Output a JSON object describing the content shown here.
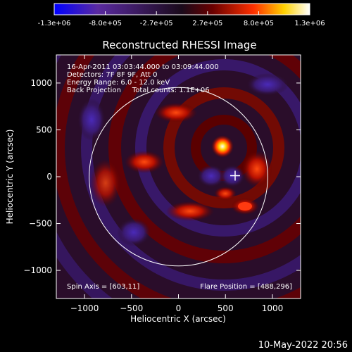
{
  "title": "Reconstructed RHESSI Image",
  "colorbar": {
    "tick_labels": [
      "-1.3e+06",
      "-8.0e+05",
      "-2.7e+05",
      "2.7e+05",
      "8.0e+05",
      "1.3e+06"
    ],
    "colors": [
      "#0000ff",
      "#5a2aa0",
      "#2a0d2a",
      "#5a0000",
      "#ff3000",
      "#ffd200",
      "#ffffff"
    ]
  },
  "annotations": {
    "line1": "16-Apr-2011 03:03:44.000 to 03:09:44.000",
    "line2": "Detectors: 7F 8F 9F, Att 0",
    "line3": "Energy Range: 6.0 - 12.0 keV",
    "line4": "Back Projection     Total counts: 1.1E+06",
    "spin_axis": "Spin Axis = [603,11]",
    "flare_position": "Flare Position = [488,296]"
  },
  "chart_data": {
    "type": "heatmap",
    "title": "Reconstructed RHESSI Image",
    "xlabel": "Heliocentric X (arcsec)",
    "ylabel": "Heliocentric Y (arcsec)",
    "xlim": [
      -1300,
      1300
    ],
    "ylim": [
      -1300,
      1300
    ],
    "x_ticks": [
      -1000,
      -500,
      0,
      500,
      1000
    ],
    "y_ticks": [
      -1000,
      -500,
      0,
      500,
      1000
    ],
    "x_tick_labels": [
      "−1000",
      "−500",
      "0",
      "500",
      "1000"
    ],
    "y_tick_labels": [
      "−1000",
      "−500",
      "0",
      "500",
      "1000"
    ],
    "solar_limb_radius": 950,
    "spin_axis": [
      603,
      11
    ],
    "flare_position": [
      488,
      296
    ]
  },
  "footer": {
    "date": "10-May-2022 20:56"
  }
}
